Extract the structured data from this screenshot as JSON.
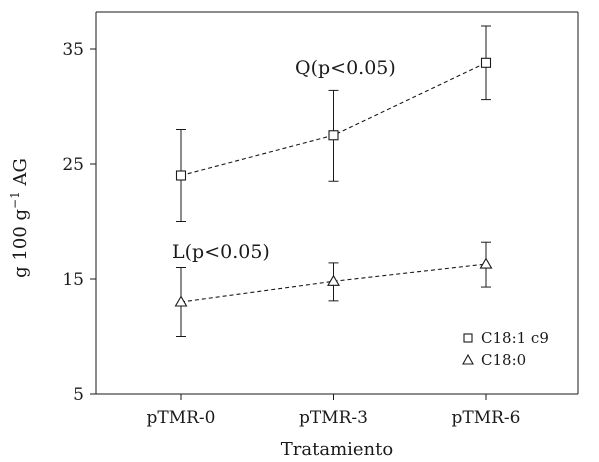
{
  "chart_data": {
    "type": "line",
    "categories": [
      "pTMR-0",
      "pTMR-3",
      "pTMR-6"
    ],
    "xlabel": "Tratamiento",
    "ylabel": {
      "base": "g 100 g",
      "superscript": "−1",
      "suffix": " AG"
    },
    "ylim": [
      5,
      37
    ],
    "yticks": [
      5,
      15,
      25,
      35
    ],
    "grid": false,
    "legend_position": "bottom-right",
    "series": [
      {
        "name": "C18:1 c9",
        "marker": "square",
        "line_style": "dashed",
        "values": [
          24.0,
          27.5,
          33.8
        ],
        "error_low": [
          20.0,
          23.5,
          30.6
        ],
        "error_high": [
          28.0,
          31.4,
          37.0
        ]
      },
      {
        "name": "C18:0",
        "marker": "triangle",
        "line_style": "dashed",
        "values": [
          13.0,
          14.8,
          16.3
        ],
        "error_low": [
          10.0,
          13.1,
          14.3
        ],
        "error_high": [
          16.0,
          16.4,
          18.2
        ]
      }
    ],
    "annotations": [
      {
        "text": "Q(p<0.05)",
        "series": 0
      },
      {
        "text": "L(p<0.05)",
        "series": 1
      }
    ],
    "colors": {
      "line": "#1a1a1a",
      "background": "#ffffff"
    }
  }
}
